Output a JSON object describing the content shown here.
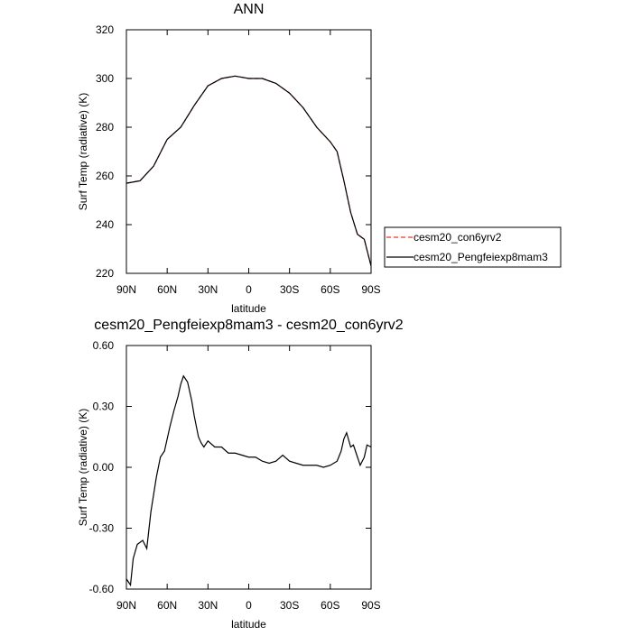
{
  "chart_data": [
    {
      "type": "line",
      "title": "ANN",
      "xlabel": "latitude",
      "ylabel": "Surf Temp (radiative) (K)",
      "x": [
        90,
        80,
        70,
        60,
        50,
        40,
        30,
        20,
        10,
        0,
        -10,
        -20,
        -30,
        -40,
        -50,
        -60,
        -65,
        -70,
        -75,
        -80,
        -85,
        -90
      ],
      "xlim": [
        90,
        -90
      ],
      "xticks": [
        {
          "value": 90,
          "label": "90N"
        },
        {
          "value": 60,
          "label": "60N"
        },
        {
          "value": 30,
          "label": "30N"
        },
        0,
        {
          "value": -30,
          "label": "30S"
        },
        {
          "value": -60,
          "label": "60S"
        },
        {
          "value": -90,
          "label": "90S"
        }
      ],
      "ylim": [
        220,
        320
      ],
      "yticks": [
        220,
        240,
        260,
        280,
        300,
        320
      ],
      "legend": "right",
      "series": [
        {
          "name": "cesm20_con6yrv2",
          "color": "#e8382f",
          "line_style": "dashed",
          "values": [
            257,
            258,
            264,
            275,
            280,
            289,
            297,
            300,
            301,
            300,
            300,
            298,
            294,
            288,
            280,
            274,
            270,
            258,
            245,
            236,
            234,
            223
          ]
        },
        {
          "name": "cesm20_Pengfeiexp8mam3",
          "color": "#000000",
          "line_style": "solid",
          "values": [
            257,
            258,
            264,
            275,
            280,
            289,
            297,
            300,
            301,
            300,
            300,
            298,
            294,
            288,
            280,
            274,
            270,
            258,
            245,
            236,
            234,
            223
          ]
        }
      ]
    },
    {
      "type": "line",
      "title": "cesm20_Pengfeiexp8mam3 - cesm20_con6yrv2",
      "xlabel": "latitude",
      "ylabel": "Surf Temp (radiative) (K)",
      "x": [
        90,
        87,
        85,
        82,
        78,
        75,
        72,
        68,
        65,
        62,
        58,
        55,
        52,
        50,
        48,
        45,
        42,
        40,
        37,
        35,
        33,
        30,
        25,
        20,
        15,
        10,
        5,
        0,
        -5,
        -10,
        -15,
        -20,
        -25,
        -30,
        -35,
        -40,
        -45,
        -50,
        -55,
        -60,
        -65,
        -68,
        -70,
        -72,
        -75,
        -77,
        -80,
        -82,
        -85,
        -87,
        -90
      ],
      "xlim": [
        90,
        -90
      ],
      "xticks": [
        {
          "value": 90,
          "label": "90N"
        },
        {
          "value": 60,
          "label": "60N"
        },
        {
          "value": 30,
          "label": "30N"
        },
        0,
        {
          "value": -30,
          "label": "30S"
        },
        {
          "value": -60,
          "label": "60S"
        },
        {
          "value": -90,
          "label": "90S"
        }
      ],
      "ylim": [
        -0.6,
        0.6
      ],
      "yticks": [
        {
          "value": -0.6,
          "label": "-0.60"
        },
        {
          "value": -0.3,
          "label": "-0.30"
        },
        {
          "value": 0,
          "label": "0.00"
        },
        {
          "value": 0.3,
          "label": "0.30"
        },
        {
          "value": 0.6,
          "label": "0.60"
        }
      ],
      "series": [
        {
          "color": "#000000",
          "line_style": "solid",
          "values": [
            -0.55,
            -0.58,
            -0.45,
            -0.38,
            -0.36,
            -0.4,
            -0.22,
            -0.05,
            0.05,
            0.08,
            0.2,
            0.28,
            0.35,
            0.41,
            0.45,
            0.42,
            0.33,
            0.25,
            0.15,
            0.12,
            0.1,
            0.13,
            0.1,
            0.1,
            0.07,
            0.07,
            0.06,
            0.05,
            0.05,
            0.03,
            0.02,
            0.03,
            0.06,
            0.03,
            0.02,
            0.01,
            0.01,
            0.01,
            0,
            0.01,
            0.03,
            0.08,
            0.14,
            0.17,
            0.1,
            0.11,
            0.05,
            0.01,
            0.05,
            0.11,
            0.1
          ]
        }
      ]
    }
  ]
}
